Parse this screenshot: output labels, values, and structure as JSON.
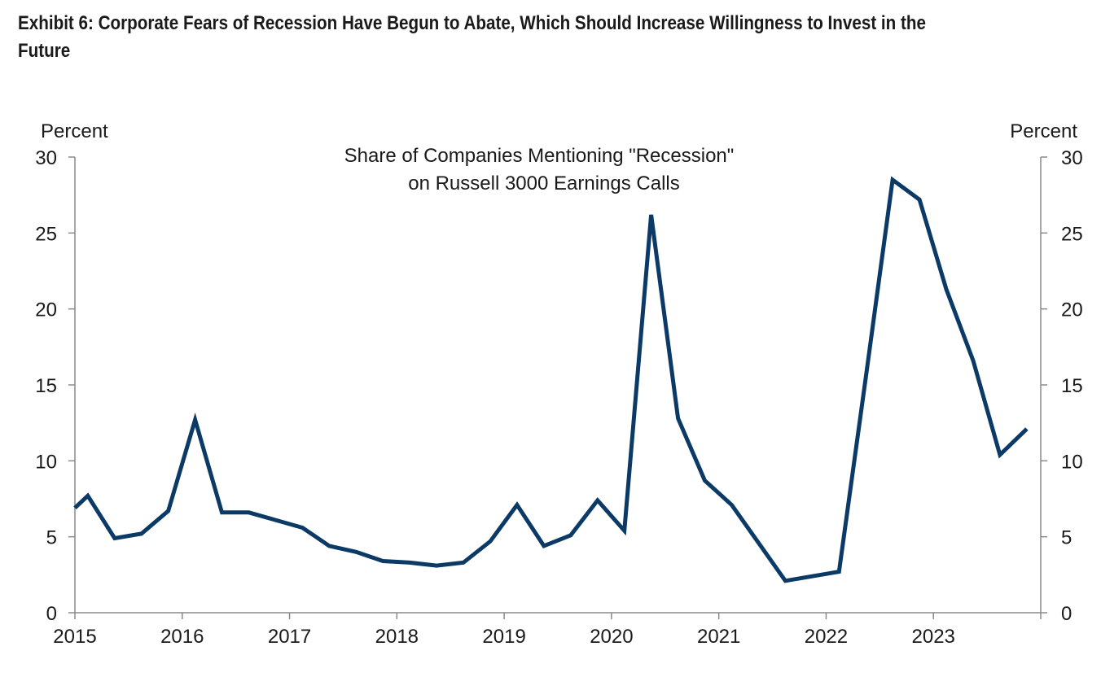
{
  "exhibit": {
    "title": "Exhibit 6: Corporate Fears of Recession Have Begun to Abate, Which Should Increase Willingness to Invest in the Future"
  },
  "chart_data": {
    "type": "line",
    "title": "Share of Companies Mentioning \"Recession\"",
    "subtitle": "on Russell 3000 Earnings Calls",
    "ylabel_left": "Percent",
    "ylabel_right": "Percent",
    "ylim": [
      0,
      30
    ],
    "yticks": [
      0,
      5,
      10,
      15,
      20,
      25,
      30
    ],
    "xlim": [
      2015.0,
      2024.0
    ],
    "xticks": [
      "2015",
      "2016",
      "2017",
      "2018",
      "2019",
      "2020",
      "2021",
      "2022",
      "2023"
    ],
    "grid": false,
    "line_color": "#0b3a66",
    "series": [
      {
        "x": [
          2015.0,
          2015.12,
          2015.37,
          2015.62,
          2015.87,
          2016.12,
          2016.37,
          2016.62,
          2016.87,
          2017.12,
          2017.37,
          2017.62,
          2017.87,
          2018.12,
          2018.37,
          2018.62,
          2018.87,
          2019.12,
          2019.37,
          2019.62,
          2019.87,
          2020.12,
          2020.37,
          2020.62,
          2020.87,
          2021.12,
          2021.37,
          2021.62,
          2021.87,
          2022.12,
          2022.37,
          2022.62,
          2022.87,
          2023.12,
          2023.37,
          2023.62,
          2023.87
        ],
        "values": [
          6.9,
          7.7,
          4.9,
          5.2,
          6.7,
          12.7,
          6.6,
          6.6,
          6.1,
          5.6,
          4.4,
          4.0,
          3.4,
          3.3,
          3.1,
          3.3,
          4.7,
          7.1,
          4.4,
          5.1,
          7.4,
          5.4,
          26.2,
          12.8,
          8.7,
          7.1,
          4.6,
          2.1,
          2.4,
          2.7,
          15.5,
          28.5,
          27.2,
          21.3,
          16.6,
          10.4,
          12.1
        ]
      }
    ]
  }
}
